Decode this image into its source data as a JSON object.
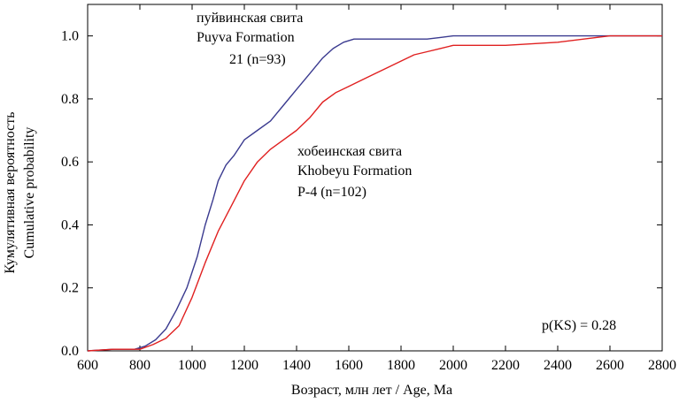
{
  "chart_data": {
    "type": "line",
    "xlabel": "Возраст, млн лет / Age, Ma",
    "ylabel_ru": "Кумулятивная вероятность",
    "ylabel_en": "Cumulative probability",
    "xlim": [
      600,
      2800
    ],
    "ylim": [
      0,
      1.1
    ],
    "xticks": [
      600,
      800,
      1000,
      1200,
      1400,
      1600,
      1800,
      2000,
      2200,
      2400,
      2600,
      2800
    ],
    "yticks": [
      "0.0",
      "0.2",
      "0.4",
      "0.6",
      "0.8",
      "1.0"
    ],
    "grid": false,
    "series": [
      {
        "name_ru": "пуйвинская свита",
        "name_en": "Puyva Formation",
        "sample": "21 (n=93)",
        "color": "#3a3a8f",
        "x": [
          600,
          700,
          780,
          820,
          860,
          900,
          940,
          980,
          1000,
          1020,
          1050,
          1080,
          1100,
          1130,
          1160,
          1200,
          1250,
          1300,
          1350,
          1400,
          1450,
          1500,
          1540,
          1580,
          1620,
          1700,
          1800,
          1900,
          1950,
          2000,
          2200,
          2400,
          2600,
          2800
        ],
        "y": [
          0.0,
          0.005,
          0.005,
          0.015,
          0.035,
          0.07,
          0.13,
          0.2,
          0.25,
          0.3,
          0.4,
          0.48,
          0.54,
          0.59,
          0.62,
          0.67,
          0.7,
          0.73,
          0.78,
          0.83,
          0.88,
          0.93,
          0.96,
          0.98,
          0.99,
          0.99,
          0.99,
          0.99,
          0.995,
          1.0,
          1.0,
          1.0,
          1.0,
          1.0
        ]
      },
      {
        "name_ru": "хобеинская свита",
        "name_en": "Khobeyu Formation",
        "sample": "P-4 (n=102)",
        "color": "#e02020",
        "x": [
          600,
          700,
          800,
          850,
          900,
          950,
          1000,
          1050,
          1100,
          1150,
          1200,
          1250,
          1300,
          1350,
          1400,
          1450,
          1500,
          1550,
          1600,
          1650,
          1700,
          1750,
          1800,
          1850,
          1900,
          1950,
          2000,
          2200,
          2400,
          2600,
          2800
        ],
        "y": [
          0.0,
          0.005,
          0.005,
          0.02,
          0.04,
          0.08,
          0.17,
          0.28,
          0.38,
          0.46,
          0.54,
          0.6,
          0.64,
          0.67,
          0.7,
          0.74,
          0.79,
          0.82,
          0.84,
          0.86,
          0.88,
          0.9,
          0.92,
          0.94,
          0.95,
          0.96,
          0.97,
          0.97,
          0.98,
          1.0,
          1.0
        ]
      }
    ],
    "annotations": {
      "pks": "p(KS) = 0.28"
    }
  }
}
